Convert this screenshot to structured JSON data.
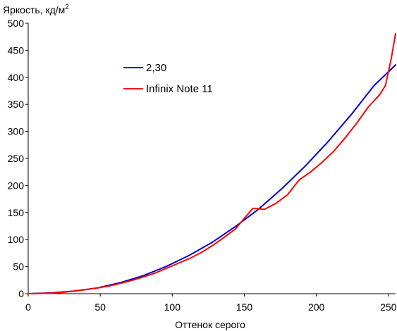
{
  "chart_data": {
    "type": "line",
    "ylabel": "Яркость, кд/м",
    "ylabel_sup": "2",
    "xlabel": "Оттенок серого",
    "xlim": [
      0,
      255
    ],
    "ylim": [
      0,
      500
    ],
    "x_ticks": [
      0,
      50,
      100,
      150,
      200,
      250
    ],
    "y_ticks": [
      0,
      50,
      100,
      150,
      200,
      250,
      300,
      350,
      400,
      450,
      500
    ],
    "grid": false,
    "legend_position": "upper-left inside plot",
    "series": [
      {
        "name": "2,30",
        "color": "#0000cc",
        "x": [
          0,
          16,
          32,
          48,
          64,
          80,
          96,
          112,
          128,
          144,
          160,
          176,
          192,
          208,
          224,
          240,
          255
        ],
        "y": [
          0,
          1.4,
          4.8,
          10.6,
          20.4,
          33.5,
          50.5,
          71.1,
          95.5,
          124.5,
          156.5,
          194.0,
          235.2,
          280.7,
          330.5,
          384.6,
          423.0
        ]
      },
      {
        "name": "Infinix Note 11",
        "color": "#ff0000",
        "x": [
          0,
          16,
          24,
          32,
          40,
          48,
          56,
          64,
          72,
          80,
          88,
          96,
          104,
          112,
          120,
          128,
          136,
          144,
          148,
          156,
          164,
          172,
          180,
          188,
          196,
          204,
          212,
          220,
          228,
          236,
          244,
          248,
          252,
          255
        ],
        "y": [
          0,
          1,
          2.5,
          5,
          7.5,
          10.5,
          14,
          19,
          24.5,
          31,
          38,
          47,
          56,
          65,
          76,
          89,
          104,
          120,
          133,
          158,
          156,
          167,
          183,
          210,
          225,
          243,
          263,
          288,
          315,
          345,
          368,
          385,
          435,
          481
        ]
      }
    ]
  }
}
